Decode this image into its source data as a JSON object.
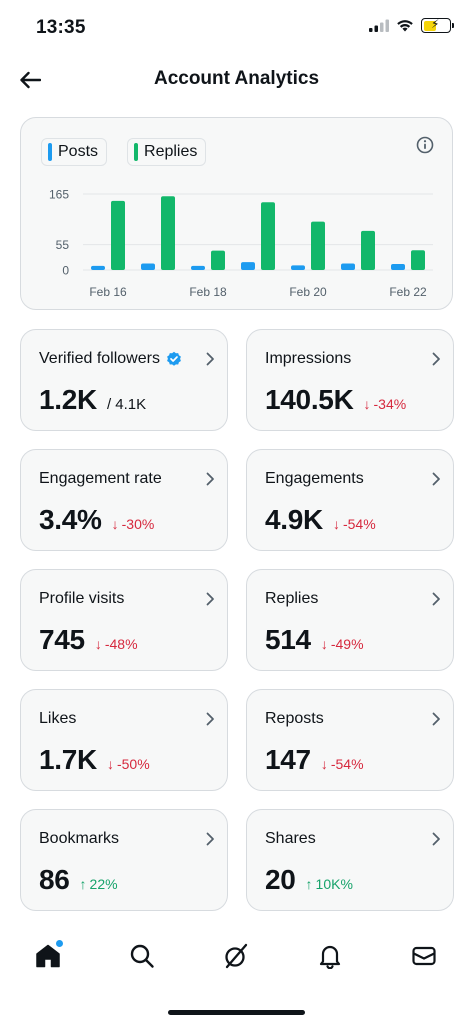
{
  "status_bar": {
    "time": "13:35"
  },
  "header": {
    "title": "Account Analytics"
  },
  "legend": {
    "posts": "Posts",
    "replies": "Replies"
  },
  "colors": {
    "posts": "#1d9bf0",
    "replies": "#12b76a",
    "down": "#d6293e",
    "up": "#17a36b"
  },
  "chart_data": {
    "type": "bar",
    "categories": [
      "Feb 16",
      "Feb 17",
      "Feb 18",
      "Feb 19",
      "Feb 20",
      "Feb 21",
      "Feb 22"
    ],
    "x_tick_labels": [
      "Feb 16",
      "Feb 18",
      "Feb 20",
      "Feb 22"
    ],
    "y_ticks": [
      "165",
      "55",
      "0"
    ],
    "ylim": [
      0,
      165
    ],
    "series": [
      {
        "name": "Posts",
        "values": [
          9,
          14,
          9,
          17,
          10,
          14,
          13
        ]
      },
      {
        "name": "Replies",
        "values": [
          150,
          160,
          42,
          147,
          105,
          85,
          43
        ]
      }
    ],
    "grid": true
  },
  "stats": [
    {
      "label": "Verified followers",
      "value": "1.2K",
      "sub": "/ 4.1K",
      "change": "",
      "direction": "",
      "verified": true
    },
    {
      "label": "Impressions",
      "value": "140.5K",
      "sub": "",
      "change": "-34%",
      "direction": "down"
    },
    {
      "label": "Engagement rate",
      "value": "3.4%",
      "sub": "",
      "change": "-30%",
      "direction": "down"
    },
    {
      "label": "Engagements",
      "value": "4.9K",
      "sub": "",
      "change": "-54%",
      "direction": "down"
    },
    {
      "label": "Profile visits",
      "value": "745",
      "sub": "",
      "change": "-48%",
      "direction": "down"
    },
    {
      "label": "Replies",
      "value": "514",
      "sub": "",
      "change": "-49%",
      "direction": "down"
    },
    {
      "label": "Likes",
      "value": "1.7K",
      "sub": "",
      "change": "-50%",
      "direction": "down"
    },
    {
      "label": "Reposts",
      "value": "147",
      "sub": "",
      "change": "-54%",
      "direction": "down"
    },
    {
      "label": "Bookmarks",
      "value": "86",
      "sub": "",
      "change": "22%",
      "direction": "up"
    },
    {
      "label": "Shares",
      "value": "20",
      "sub": "",
      "change": "10K%",
      "direction": "up"
    }
  ],
  "tabs": [
    {
      "icon": "home-icon",
      "active": true,
      "notify": true
    },
    {
      "icon": "search-icon",
      "active": false
    },
    {
      "icon": "grok-icon",
      "active": false
    },
    {
      "icon": "bell-icon",
      "active": false
    },
    {
      "icon": "mail-icon",
      "active": false
    }
  ]
}
